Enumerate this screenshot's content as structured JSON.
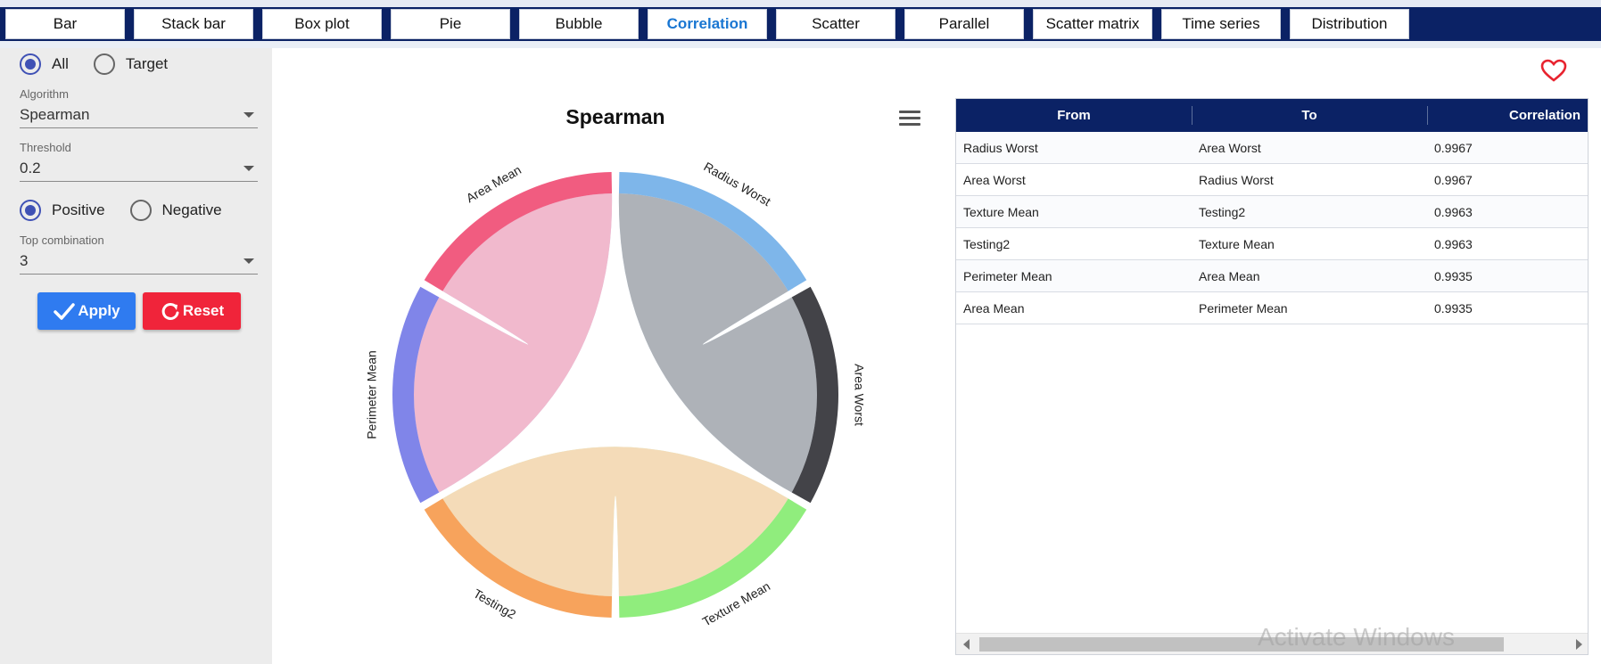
{
  "tabs": [
    {
      "label": "Bar",
      "active": false
    },
    {
      "label": "Stack bar",
      "active": false
    },
    {
      "label": "Box plot",
      "active": false
    },
    {
      "label": "Pie",
      "active": false
    },
    {
      "label": "Bubble",
      "active": false
    },
    {
      "label": "Correlation",
      "active": true
    },
    {
      "label": "Scatter",
      "active": false
    },
    {
      "label": "Parallel",
      "active": false
    },
    {
      "label": "Scatter matrix",
      "active": false
    },
    {
      "label": "Time series",
      "active": false
    },
    {
      "label": "Distribution",
      "active": false
    }
  ],
  "sidebar": {
    "scope": {
      "options": [
        "All",
        "Target"
      ],
      "selected": "All"
    },
    "algorithm": {
      "label": "Algorithm",
      "value": "Spearman"
    },
    "threshold": {
      "label": "Threshold",
      "value": "0.2"
    },
    "sign": {
      "options": [
        "Positive",
        "Negative"
      ],
      "selected": "Positive"
    },
    "top_combination": {
      "label": "Top combination",
      "value": "3"
    },
    "apply_label": "Apply",
    "reset_label": "Reset",
    "apply_color": "#2f7bf0",
    "reset_color": "#f0243a"
  },
  "chart": {
    "title": "Spearman",
    "menu_icon": "hamburger-menu-icon"
  },
  "chart_data": {
    "type": "chord",
    "title": "Spearman",
    "nodes": [
      {
        "name": "Radius Worst",
        "color": "#7eb6ea"
      },
      {
        "name": "Area Worst",
        "color": "#434348"
      },
      {
        "name": "Texture Mean",
        "color": "#90ed7d"
      },
      {
        "name": "Testing2",
        "color": "#f7a35c"
      },
      {
        "name": "Perimeter Mean",
        "color": "#8085e9"
      },
      {
        "name": "Area Mean",
        "color": "#f15c80"
      }
    ],
    "links": [
      {
        "from": "Radius Worst",
        "to": "Area Worst",
        "value": 0.9967
      },
      {
        "from": "Area Worst",
        "to": "Radius Worst",
        "value": 0.9967
      },
      {
        "from": "Texture Mean",
        "to": "Testing2",
        "value": 0.9963
      },
      {
        "from": "Testing2",
        "to": "Texture Mean",
        "value": 0.9963
      },
      {
        "from": "Perimeter Mean",
        "to": "Area Mean",
        "value": 0.9935
      },
      {
        "from": "Area Mean",
        "to": "Perimeter Mean",
        "value": 0.9935
      }
    ]
  },
  "table": {
    "columns": [
      "From",
      "To",
      "Correlation"
    ],
    "rows": [
      [
        "Radius Worst",
        "Area Worst",
        "0.9967"
      ],
      [
        "Area Worst",
        "Radius Worst",
        "0.9967"
      ],
      [
        "Texture Mean",
        "Testing2",
        "0.9963"
      ],
      [
        "Testing2",
        "Texture Mean",
        "0.9963"
      ],
      [
        "Perimeter Mean",
        "Area Mean",
        "0.9935"
      ],
      [
        "Area Mean",
        "Perimeter Mean",
        "0.9935"
      ]
    ],
    "header_color": "#0b2265"
  },
  "favorite_icon": "heart-icon",
  "watermark": "Activate Windows"
}
